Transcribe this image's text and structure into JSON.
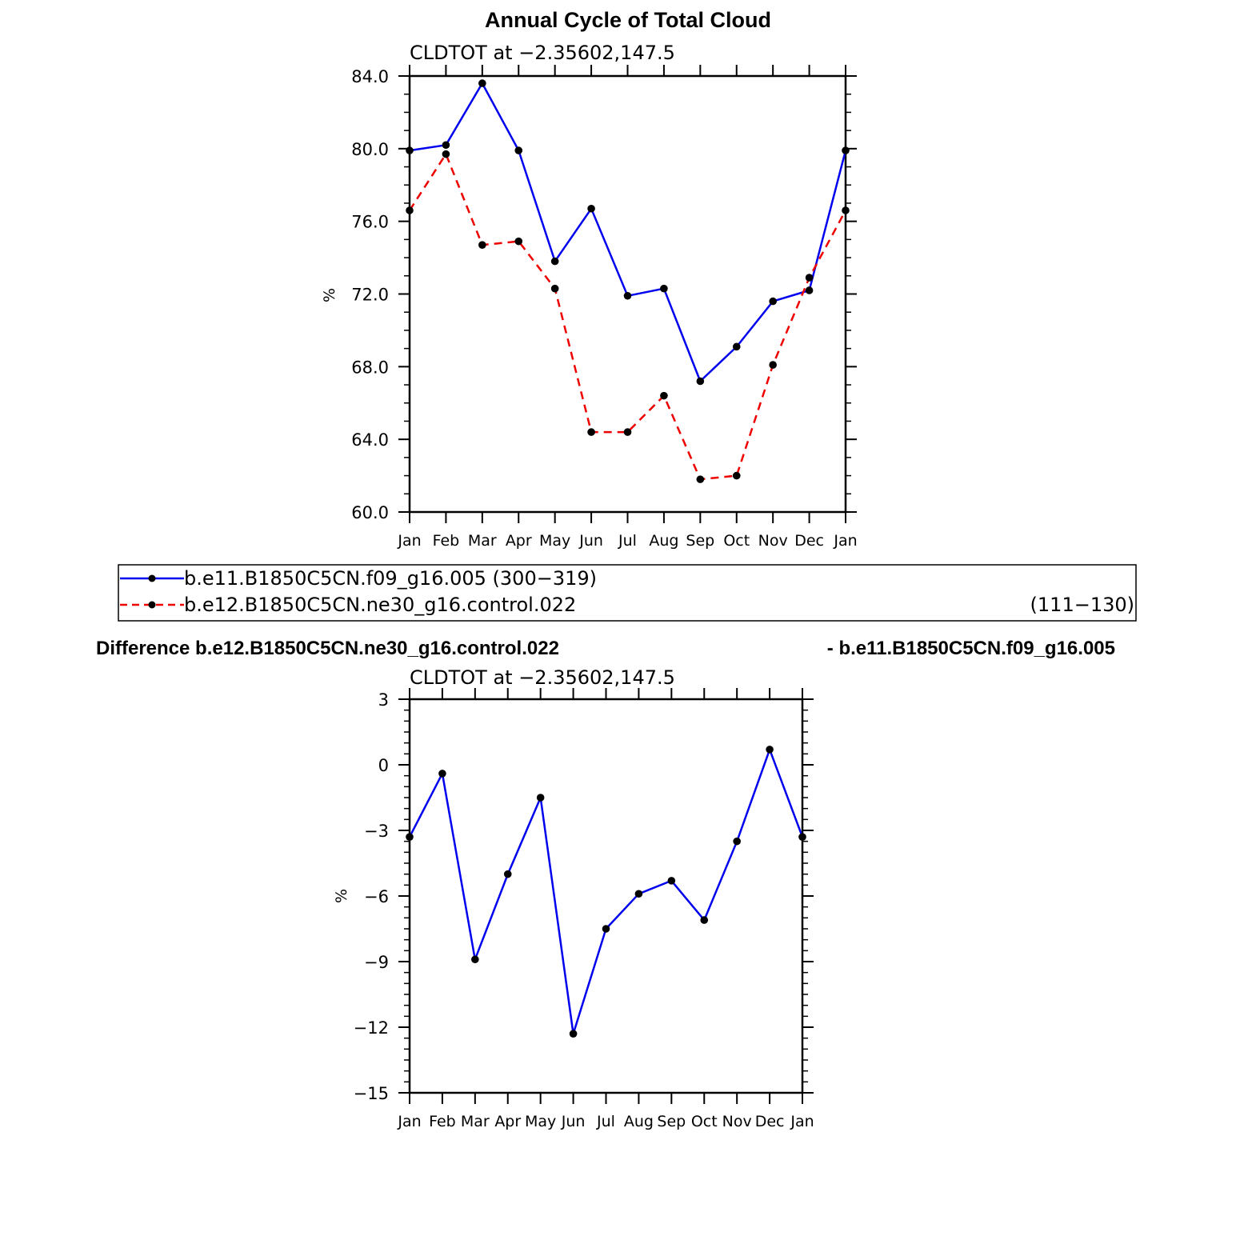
{
  "figure": {
    "title": "Annual Cycle of Total Cloud",
    "diff_title_left": "Difference b.e12.B1850C5CN.ne30_g16.control.022",
    "diff_title_right": "- b.e11.B1850C5CN.f09_g16.005"
  },
  "legend": {
    "entries": [
      {
        "label": "b.e11.B1850C5CN.f09_g16.005 (300−319)",
        "period": "",
        "color": "#0000ee",
        "style": "solid"
      },
      {
        "label": "b.e12.B1850C5CN.ne30_g16.control.022",
        "period": "(111−130)",
        "color": "#ee0000",
        "style": "dashed"
      }
    ]
  },
  "chart_data": [
    {
      "type": "line",
      "subtitle": "CLDTOT at −2.35602,147.5",
      "ylabel": "%",
      "categories": [
        "Jan",
        "Feb",
        "Mar",
        "Apr",
        "May",
        "Jun",
        "Jul",
        "Aug",
        "Sep",
        "Oct",
        "Nov",
        "Dec",
        "Jan"
      ],
      "ylim": [
        60,
        84
      ],
      "yticks": [
        60,
        64,
        68,
        72,
        76,
        80,
        84
      ],
      "ytick_labels": [
        "60.0",
        "64.0",
        "68.0",
        "72.0",
        "76.0",
        "80.0",
        "84.0"
      ],
      "series": [
        {
          "name": "b.e11.B1850C5CN.f09_g16.005",
          "color": "#0000ee",
          "dashed": false,
          "values": [
            79.9,
            80.2,
            83.6,
            79.9,
            73.8,
            76.7,
            71.9,
            72.3,
            67.2,
            69.1,
            71.6,
            72.2,
            79.9
          ]
        },
        {
          "name": "b.e12.B1850C5CN.ne30_g16.control.022",
          "color": "#ee0000",
          "dashed": true,
          "values": [
            76.6,
            79.7,
            74.7,
            74.9,
            72.3,
            64.4,
            64.4,
            66.4,
            61.8,
            62.0,
            68.1,
            72.9,
            76.6
          ]
        }
      ]
    },
    {
      "type": "line",
      "subtitle": "CLDTOT at −2.35602,147.5",
      "ylabel": "%",
      "categories": [
        "Jan",
        "Feb",
        "Mar",
        "Apr",
        "May",
        "Jun",
        "Jul",
        "Aug",
        "Sep",
        "Oct",
        "Nov",
        "Dec",
        "Jan"
      ],
      "ylim": [
        -15,
        3
      ],
      "yticks": [
        -15,
        -12,
        -9,
        -6,
        -3,
        0,
        3
      ],
      "ytick_labels": [
        "−15",
        "−12",
        "−9",
        "−6",
        "−3",
        "0",
        "3"
      ],
      "series": [
        {
          "color": "#0000ee",
          "dashed": false,
          "values": [
            -3.3,
            -0.4,
            -8.9,
            -5.0,
            -1.5,
            -12.3,
            -7.5,
            -5.9,
            -5.3,
            -7.1,
            -3.5,
            0.7,
            -3.3
          ]
        }
      ]
    }
  ]
}
